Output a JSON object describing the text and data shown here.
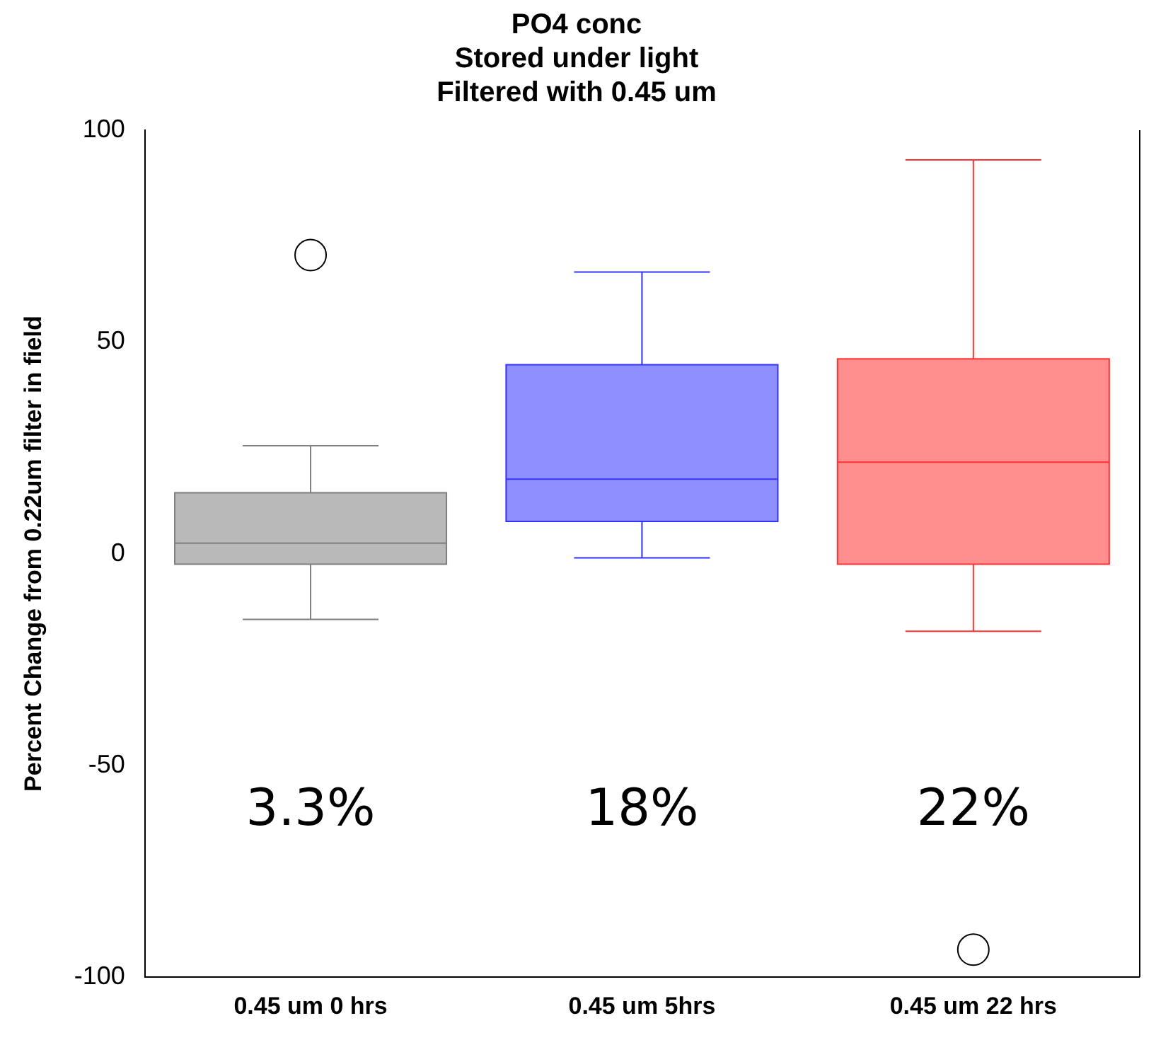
{
  "chart_data": {
    "type": "box",
    "title": "PO4 conc\nStored under light\nFiltered with 0.45 um",
    "ylabel": "Percent Change from 0.22um filter in field",
    "categories": [
      "0.45 um 0 hrs",
      "0.45 um 5hrs",
      "0.45 um 22 hrs"
    ],
    "colors": [
      "#7f7f7f",
      "#3333ff",
      "#ff3333"
    ],
    "boxes": [
      {
        "low": -15.5,
        "q1": -2.5,
        "median": 2.5,
        "q3": 14.4,
        "high": 25.5,
        "outliers": [
          70.5
        ]
      },
      {
        "low": -1,
        "q1": 7.6,
        "median": 17.6,
        "q3": 44.6,
        "high": 66.5
      },
      {
        "low": -18.3,
        "q1": -2.5,
        "median": 21.6,
        "q3": 46,
        "high": 93,
        "outliers": [
          -93.5
        ]
      }
    ],
    "ylim": [
      -100,
      100
    ],
    "yticks": [
      -100,
      -50,
      0,
      50,
      100
    ],
    "grid": false,
    "legend": false,
    "annotations": [
      "3.3%",
      "18%",
      "22%"
    ]
  }
}
